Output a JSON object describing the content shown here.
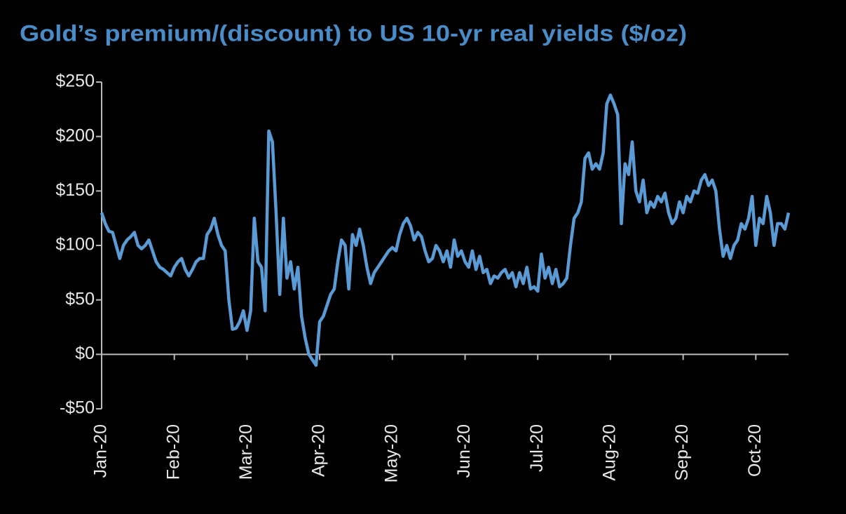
{
  "chart_data": {
    "type": "line",
    "title": "Gold’s premium/(discount) to US 10-yr real yields ($/oz)",
    "categories": [
      "Jan-20",
      null,
      null,
      null,
      null,
      null,
      null,
      null,
      null,
      null,
      null,
      null,
      null,
      null,
      null,
      null,
      null,
      null,
      null,
      null,
      "Feb-20",
      null,
      null,
      null,
      null,
      null,
      null,
      null,
      null,
      null,
      null,
      null,
      null,
      null,
      null,
      null,
      null,
      null,
      null,
      null,
      "Mar-20",
      null,
      null,
      null,
      null,
      null,
      null,
      null,
      null,
      null,
      null,
      null,
      null,
      null,
      null,
      null,
      null,
      null,
      null,
      null,
      "Apr-20",
      null,
      null,
      null,
      null,
      null,
      null,
      null,
      null,
      null,
      null,
      null,
      null,
      null,
      null,
      null,
      null,
      null,
      null,
      null,
      "May-20",
      null,
      null,
      null,
      null,
      null,
      null,
      null,
      null,
      null,
      null,
      null,
      null,
      null,
      null,
      null,
      null,
      null,
      null,
      null,
      "Jun-20",
      null,
      null,
      null,
      null,
      null,
      null,
      null,
      null,
      null,
      null,
      null,
      null,
      null,
      null,
      null,
      null,
      null,
      null,
      null,
      "Jul-20",
      null,
      null,
      null,
      null,
      null,
      null,
      null,
      null,
      null,
      null,
      null,
      null,
      null,
      null,
      null,
      null,
      null,
      null,
      null,
      "Aug-20",
      null,
      null,
      null,
      null,
      null,
      null,
      null,
      null,
      null,
      null,
      null,
      null,
      null,
      null,
      null,
      null,
      null,
      null,
      null,
      "Sep-20",
      null,
      null,
      null,
      null,
      null,
      null,
      null,
      null,
      null,
      null,
      null,
      null,
      null,
      null,
      null,
      null,
      null,
      null,
      null,
      "Oct-20",
      null,
      null,
      null,
      null,
      null,
      null,
      null,
      null,
      null
    ],
    "values": [
      130,
      120,
      113,
      112,
      100,
      88,
      100,
      105,
      108,
      112,
      100,
      97,
      100,
      105,
      95,
      85,
      80,
      78,
      75,
      72,
      80,
      85,
      88,
      78,
      72,
      78,
      85,
      88,
      88,
      110,
      115,
      125,
      110,
      100,
      95,
      50,
      23,
      24,
      30,
      40,
      22,
      40,
      125,
      85,
      80,
      40,
      205,
      195,
      130,
      55,
      125,
      70,
      85,
      60,
      80,
      35,
      15,
      0,
      -5,
      -10,
      30,
      35,
      45,
      55,
      60,
      85,
      105,
      100,
      60,
      110,
      100,
      115,
      100,
      80,
      65,
      75,
      80,
      85,
      90,
      95,
      98,
      95,
      110,
      120,
      125,
      118,
      105,
      112,
      108,
      95,
      85,
      88,
      100,
      95,
      85,
      95,
      80,
      105,
      90,
      95,
      85,
      80,
      95,
      78,
      90,
      75,
      78,
      65,
      72,
      70,
      75,
      78,
      70,
      75,
      62,
      75,
      65,
      80,
      60,
      62,
      58,
      92,
      70,
      80,
      65,
      78,
      62,
      65,
      70,
      100,
      125,
      130,
      140,
      180,
      185,
      170,
      175,
      170,
      185,
      230,
      238,
      230,
      220,
      120,
      175,
      165,
      195,
      150,
      140,
      160,
      130,
      140,
      135,
      145,
      140,
      148,
      130,
      120,
      125,
      140,
      130,
      145,
      140,
      150,
      148,
      160,
      165,
      155,
      160,
      150,
      115,
      90,
      100,
      88,
      100,
      105,
      120,
      115,
      125,
      145,
      100,
      125,
      120,
      145,
      130,
      100,
      120,
      120,
      115,
      130
    ],
    "color": "#5b9bd5",
    "ylim": [
      -50,
      250
    ],
    "yticks": [
      {
        "value": -50,
        "label": "-$50"
      },
      {
        "value": 0,
        "label": "$0"
      },
      {
        "value": 50,
        "label": "$50"
      },
      {
        "value": 100,
        "label": "$100"
      },
      {
        "value": 150,
        "label": "$150"
      },
      {
        "value": 200,
        "label": "$200"
      },
      {
        "value": 250,
        "label": "$250"
      }
    ]
  }
}
